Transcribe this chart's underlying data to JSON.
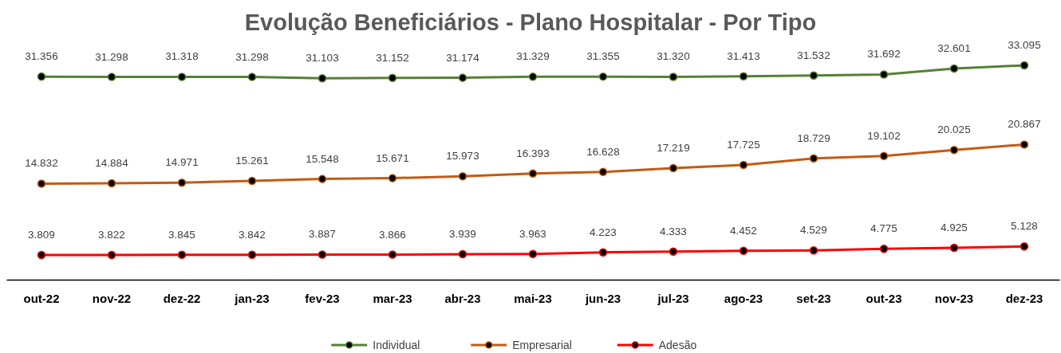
{
  "chart_data": {
    "type": "line",
    "title": "Evolução Beneficiários - Plano Hospitalar - Por Tipo",
    "categories": [
      "out-22",
      "nov-22",
      "dez-22",
      "jan-23",
      "fev-23",
      "mar-23",
      "abr-23",
      "mai-23",
      "jun-23",
      "jul-23",
      "ago-23",
      "set-23",
      "out-23",
      "nov-23",
      "dez-23"
    ],
    "series": [
      {
        "name": "Individual",
        "color": "#548235",
        "values": [
          31356,
          31298,
          31318,
          31298,
          31103,
          31152,
          31174,
          31329,
          31355,
          31320,
          31413,
          31532,
          31692,
          32601,
          33095
        ],
        "value_labels": [
          "31.356",
          "31.298",
          "31.318",
          "31.298",
          "31.103",
          "31.152",
          "31.174",
          "31.329",
          "31.355",
          "31.320",
          "31.413",
          "31.532",
          "31.692",
          "32.601",
          "33.095"
        ]
      },
      {
        "name": "Empresarial",
        "color": "#c55a11",
        "values": [
          14832,
          14884,
          14971,
          15261,
          15548,
          15671,
          15973,
          16393,
          16628,
          17219,
          17725,
          18729,
          19102,
          20025,
          20867
        ],
        "value_labels": [
          "14.832",
          "14.884",
          "14.971",
          "15.261",
          "15.548",
          "15.671",
          "15.973",
          "16.393",
          "16.628",
          "17.219",
          "17.725",
          "18.729",
          "19.102",
          "20.025",
          "20.867"
        ]
      },
      {
        "name": "Adesão",
        "color": "#ff0000",
        "values": [
          3809,
          3822,
          3845,
          3842,
          3887,
          3866,
          3939,
          3963,
          4223,
          4333,
          4452,
          4529,
          4775,
          4925,
          5128
        ],
        "value_labels": [
          "3.809",
          "3.822",
          "3.845",
          "3.842",
          "3.887",
          "3.866",
          "3.939",
          "3.963",
          "4.223",
          "4.333",
          "4.452",
          "4.529",
          "4.775",
          "4.925",
          "5.128"
        ]
      }
    ],
    "marker": "circle",
    "line_style": "solid",
    "legend": "bottom",
    "grid": false,
    "tick_labels": "x"
  }
}
